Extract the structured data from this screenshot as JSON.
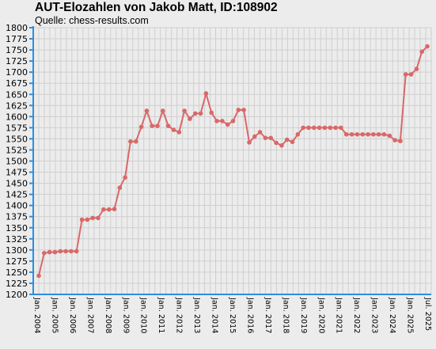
{
  "header": {
    "title": "AUT-Elozahlen von Jakob Matt, ID:108902",
    "subtitle": "Quelle: chess-results.com"
  },
  "chart_data": {
    "type": "line",
    "title": "AUT-Elozahlen von Jakob Matt, ID:108902",
    "subtitle": "Quelle: chess-results.com",
    "xlabel": "",
    "ylabel": "",
    "ylim": [
      1200,
      1800
    ],
    "ytick_step": 25,
    "grid": true,
    "line_color": "#d96868",
    "axis_color": "#2b8ee0",
    "x_tick_labels": [
      "Jan. 2004",
      "Jan. 2005",
      "Jan. 2006",
      "Jan. 2007",
      "Jan. 2008",
      "Jan. 2009",
      "Jan. 2010",
      "Jan. 2011",
      "Jan. 2012",
      "Jan. 2013",
      "Jan. 2014",
      "Jan. 2015",
      "Jan. 2016",
      "Jan. 2017",
      "Jan. 2018",
      "Jan. 2019",
      "Jan. 2020",
      "Jan. 2021",
      "Jan. 2022",
      "Jan. 2023",
      "Jan. 2024",
      "Jan. 2025",
      "Jul. 2025"
    ],
    "values": [
      1242,
      1293,
      1295,
      1295,
      1297,
      1297,
      1297,
      1297,
      1368,
      1368,
      1372,
      1372,
      1391,
      1391,
      1392,
      1440,
      1463,
      1544,
      1544,
      1577,
      1613,
      1579,
      1579,
      1613,
      1579,
      1570,
      1565,
      1613,
      1595,
      1607,
      1607,
      1652,
      1609,
      1590,
      1590,
      1582,
      1590,
      1615,
      1615,
      1542,
      1555,
      1565,
      1552,
      1552,
      1541,
      1535,
      1548,
      1543,
      1560,
      1575,
      1575,
      1575,
      1575,
      1575,
      1575,
      1575,
      1575,
      1560,
      1560,
      1560,
      1560,
      1560,
      1560,
      1560,
      1560,
      1557,
      1547,
      1545,
      1695,
      1695,
      1707,
      1746,
      1758
    ]
  }
}
